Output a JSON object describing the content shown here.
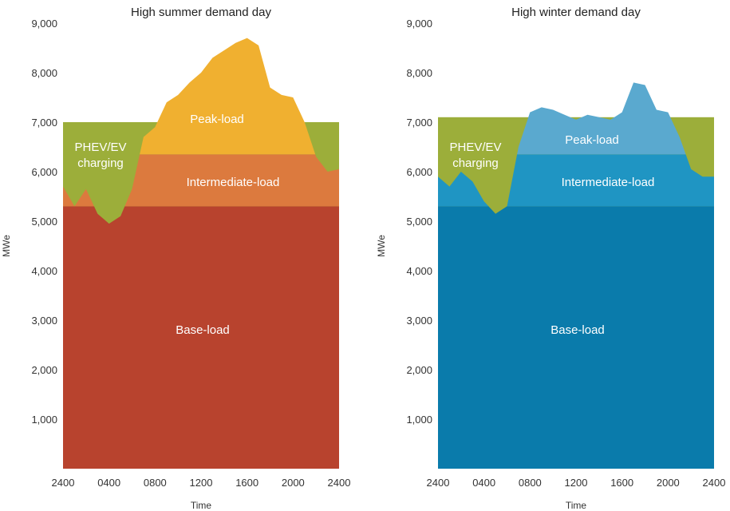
{
  "chart_data": [
    {
      "type": "area",
      "title": "High summer demand day",
      "xlabel": "Time",
      "ylabel": "MWe",
      "x_ticks": [
        "2400",
        "0400",
        "0800",
        "1200",
        "1600",
        "2000",
        "2400"
      ],
      "y_ticks": [
        "1,000",
        "2,000",
        "3,000",
        "4,000",
        "5,000",
        "6,000",
        "7,000",
        "8,000",
        "9,000"
      ],
      "ylim": [
        0,
        9000
      ],
      "grid": false,
      "legend": "none",
      "hours": [
        0,
        1,
        2,
        3,
        4,
        5,
        6,
        7,
        8,
        9,
        10,
        11,
        12,
        13,
        14,
        15,
        16,
        17,
        18,
        19,
        20,
        21,
        22,
        23,
        24
      ],
      "demand": [
        5700,
        5300,
        5650,
        5150,
        4950,
        5100,
        5650,
        6700,
        6900,
        7400,
        7550,
        7800,
        8000,
        8300,
        8450,
        8600,
        8700,
        8550,
        7700,
        7550,
        7500,
        7000,
        6300,
        6000,
        6050
      ],
      "capacity_line": 7000,
      "bands": [
        {
          "label": "Base-load",
          "from": 0,
          "to": 5300,
          "color": "#b8432e"
        },
        {
          "label": "Intermediate-load",
          "from": 5300,
          "to": 6350,
          "color": "#dc7a3e"
        },
        {
          "label": "Peak-load",
          "from": 6350,
          "to": 9000,
          "color": "#f0b030"
        }
      ],
      "charging_label": [
        "PHEV/EV",
        "charging"
      ],
      "charging_color": "#9cae3a"
    },
    {
      "type": "area",
      "title": "High winter demand day",
      "xlabel": "Time",
      "ylabel": "MWe",
      "x_ticks": [
        "2400",
        "0400",
        "0800",
        "1200",
        "1600",
        "2000",
        "2400"
      ],
      "y_ticks": [
        "1,000",
        "2,000",
        "3,000",
        "4,000",
        "5,000",
        "6,000",
        "7,000",
        "8,000",
        "9,000"
      ],
      "ylim": [
        0,
        9000
      ],
      "grid": false,
      "legend": "none",
      "hours": [
        0,
        1,
        2,
        3,
        4,
        5,
        6,
        7,
        8,
        9,
        10,
        11,
        12,
        13,
        14,
        15,
        16,
        17,
        18,
        19,
        20,
        21,
        22,
        23,
        24
      ],
      "demand": [
        5900,
        5700,
        6000,
        5800,
        5400,
        5150,
        5300,
        6500,
        7200,
        7300,
        7250,
        7150,
        7050,
        7150,
        7100,
        7050,
        7200,
        7800,
        7750,
        7250,
        7200,
        6700,
        6050,
        5900,
        5900
      ],
      "capacity_line": 7100,
      "bands": [
        {
          "label": "Base-load",
          "from": 0,
          "to": 5300,
          "color": "#0a7bab"
        },
        {
          "label": "Intermediate-load",
          "from": 5300,
          "to": 6350,
          "color": "#1f95c3"
        },
        {
          "label": "Peak-load",
          "from": 6350,
          "to": 9000,
          "color": "#5aa9cf"
        }
      ],
      "charging_label": [
        "PHEV/EV",
        "charging"
      ],
      "charging_color": "#9cae3a"
    }
  ]
}
